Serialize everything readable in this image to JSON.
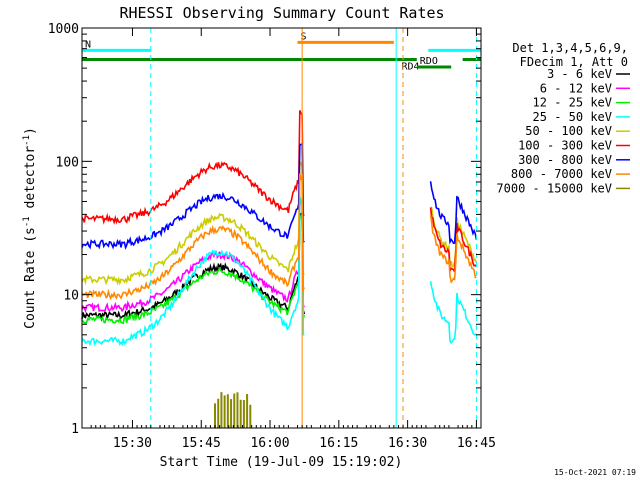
{
  "chart_data": {
    "type": "line",
    "title": "RHESSI Observing Summary Count Rates",
    "xlabel": "Start Time (19-Jul-09 15:19:02)",
    "ylabel_main": "Count Rate (s",
    "ylabel_sup1": "-1",
    "ylabel_mid": " detector",
    "ylabel_sup2": "-1",
    "ylabel_end": ")",
    "y_scale": "log",
    "ylim": [
      1,
      1000
    ],
    "x_range_min": [
      0,
      87
    ],
    "timestamp": "15-Oct-2021 07:19",
    "legend_header": [
      "Det 1,3,4,5,6,9,",
      "FDecim 1, Att 0"
    ],
    "legend_placement": "right",
    "grid": false,
    "x_ticks": [
      {
        "min": 11,
        "label": "15:30"
      },
      {
        "min": 26,
        "label": "15:45"
      },
      {
        "min": 41,
        "label": "16:00"
      },
      {
        "min": 56,
        "label": "16:15"
      },
      {
        "min": 71,
        "label": "16:30"
      },
      {
        "min": 86,
        "label": "16:45"
      }
    ],
    "y_ticks": [
      {
        "value": 1,
        "label": "1"
      },
      {
        "value": 10,
        "label": "10"
      },
      {
        "value": 100,
        "label": "100"
      },
      {
        "value": 1000,
        "label": "1000"
      }
    ],
    "series": [
      {
        "name": "3 - 6 keV",
        "color": "#000000",
        "base": 7,
        "peak": 16,
        "after": null
      },
      {
        "name": "6 - 12 keV",
        "color": "#ff00ff",
        "base": 8,
        "peak": 20,
        "after": null
      },
      {
        "name": "12 - 25 keV",
        "color": "#00ee00",
        "base": 6.5,
        "peak": 15,
        "after": null
      },
      {
        "name": "25 - 50 keV",
        "color": "#00ffff",
        "base": 4.5,
        "peak": 21,
        "after": 6
      },
      {
        "name": "50 - 100 keV",
        "color": "#cccc00",
        "base": 13,
        "peak": 38,
        "after": 22
      },
      {
        "name": "100 - 300 keV",
        "color": "#ff0000",
        "base": 37,
        "peak": 93,
        "after": 20
      },
      {
        "name": "300 - 800 keV",
        "color": "#0000ff",
        "base": 24,
        "peak": 55,
        "after": 33
      },
      {
        "name": "800 - 7000 keV",
        "color": "#ff8800",
        "base": 10,
        "peak": 31,
        "after": 17
      },
      {
        "name": "7000 - 15000 keV",
        "color": "#888800",
        "base": null,
        "peak": 1.9,
        "after": null
      }
    ],
    "flag_bars": [
      {
        "label": "N",
        "color": "#00ffff",
        "start": 0,
        "end": 15,
        "value": 680
      },
      {
        "label": "",
        "color": "#00ffff",
        "start": 75.5,
        "end": 87,
        "value": 680
      },
      {
        "label": "S",
        "color": "#ff8800",
        "start": 47,
        "end": 68,
        "value": 780
      },
      {
        "label": "",
        "color": "#008800",
        "start": 0,
        "end": 73,
        "value": 580
      },
      {
        "label": "RD4",
        "color": "#008800",
        "start": 69,
        "end": 72.5,
        "value": 580
      },
      {
        "label": "RDO",
        "color": "#008800",
        "start": 73,
        "end": 80.5,
        "value": 510
      },
      {
        "label": "",
        "color": "#008800",
        "start": 83,
        "end": 87,
        "value": 580
      }
    ],
    "events": [
      {
        "min": 15,
        "color": "#00ffff",
        "style": "dashed"
      },
      {
        "min": 48,
        "color": "#ff8800",
        "style": "solid"
      },
      {
        "min": 68.5,
        "color": "#00ffff",
        "style": "solid"
      },
      {
        "min": 70,
        "color": "#ff8800",
        "style": "dashed"
      },
      {
        "min": 86,
        "color": "#00ffff",
        "style": "dashed"
      }
    ]
  }
}
